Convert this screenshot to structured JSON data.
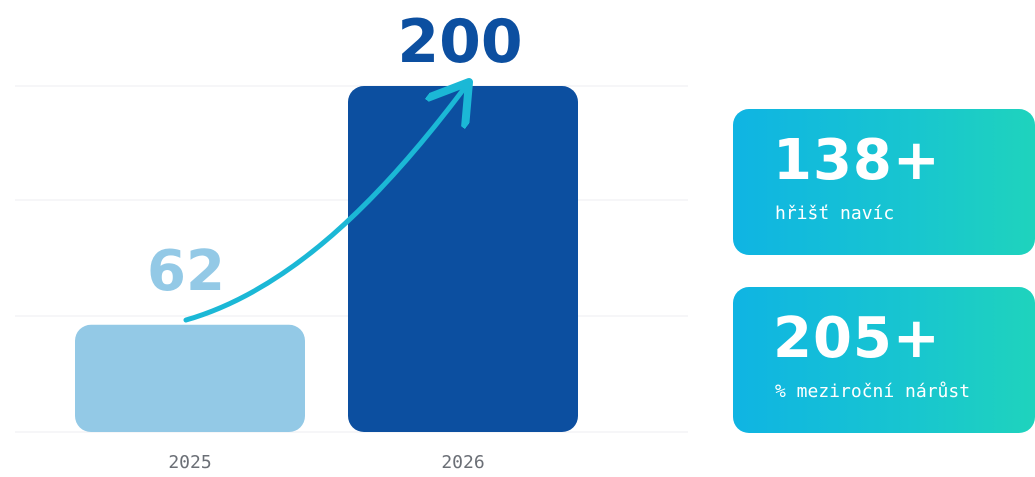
{
  "chart_data": {
    "type": "bar",
    "categories": [
      "2025",
      "2026"
    ],
    "values": [
      62,
      200
    ],
    "value_labels": [
      "62",
      "200"
    ],
    "title": "",
    "xlabel": "",
    "ylabel": "",
    "ylim": [
      0,
      200
    ],
    "grid": true,
    "bar_colors": [
      "#93c9e6",
      "#0c4fa0"
    ],
    "value_label_colors": [
      "#93c9e6",
      "#0c4fa0"
    ],
    "arrow_color": "#1bb8d6"
  },
  "stats": [
    {
      "value": "138+",
      "label": "hřišť navíc"
    },
    {
      "value": "205+",
      "label": "% meziroční nárůst"
    }
  ]
}
